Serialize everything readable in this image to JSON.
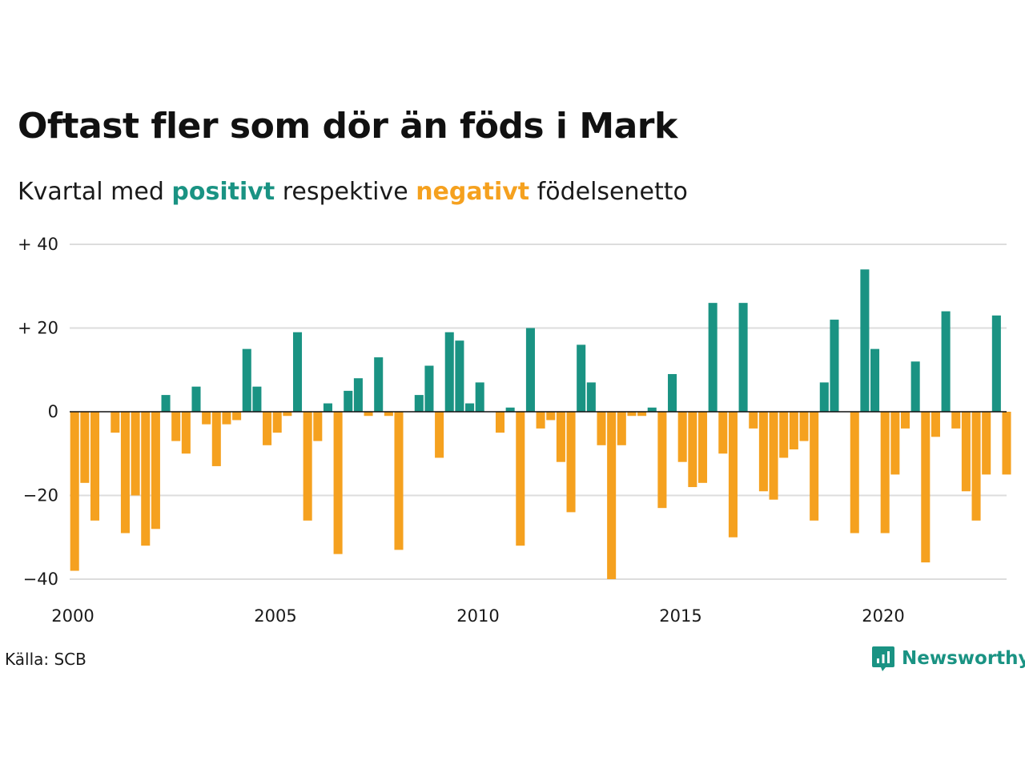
{
  "title": "Oftast fler som dör än föds i Mark",
  "subtitle": {
    "before": "Kvartal med ",
    "positive": "positivt",
    "middle": " respektive ",
    "negative": "negativt",
    "after": " födelsenetto"
  },
  "source": "Källa: SCB",
  "brand": "Newsworthy",
  "colors": {
    "positive": "#1a9383",
    "negative": "#f5a11f",
    "grid": "#dddddd",
    "zero": "#111111"
  },
  "chart_data": {
    "type": "bar",
    "x_start": "2000",
    "x_end": "2023",
    "x_ticks": [
      "2000",
      "2005",
      "2010",
      "2015",
      "2020"
    ],
    "y_ticks": [
      {
        "value": 40,
        "label": "+ 40"
      },
      {
        "value": 20,
        "label": "+ 20"
      },
      {
        "value": 0,
        "label": "0"
      },
      {
        "value": -20,
        "label": "−20"
      },
      {
        "value": -40,
        "label": "−40"
      }
    ],
    "ylim": [
      -40,
      40
    ],
    "grid": true,
    "quarters_start": "2000 Q1",
    "values": [
      -38,
      -17,
      -26,
      0,
      -5,
      -29,
      -20,
      -32,
      -28,
      4,
      -7,
      -10,
      6,
      -3,
      -13,
      -3,
      -2,
      15,
      6,
      -8,
      -5,
      -1,
      19,
      -26,
      -7,
      2,
      -34,
      5,
      8,
      -1,
      13,
      -1,
      -33,
      0,
      4,
      11,
      -11,
      19,
      17,
      2,
      7,
      0,
      -5,
      1,
      -32,
      20,
      -4,
      -2,
      -12,
      -24,
      16,
      7,
      -8,
      -40,
      -8,
      -1,
      -1,
      1,
      -23,
      9,
      -12,
      -18,
      -17,
      26,
      -10,
      -30,
      26,
      -4,
      -19,
      -21,
      -11,
      -9,
      -7,
      -26,
      7,
      22,
      0,
      -29,
      34,
      15,
      -29,
      -15,
      -4,
      12,
      -36,
      -6,
      24,
      -4,
      -19,
      -26,
      -15,
      23,
      -15
    ]
  }
}
